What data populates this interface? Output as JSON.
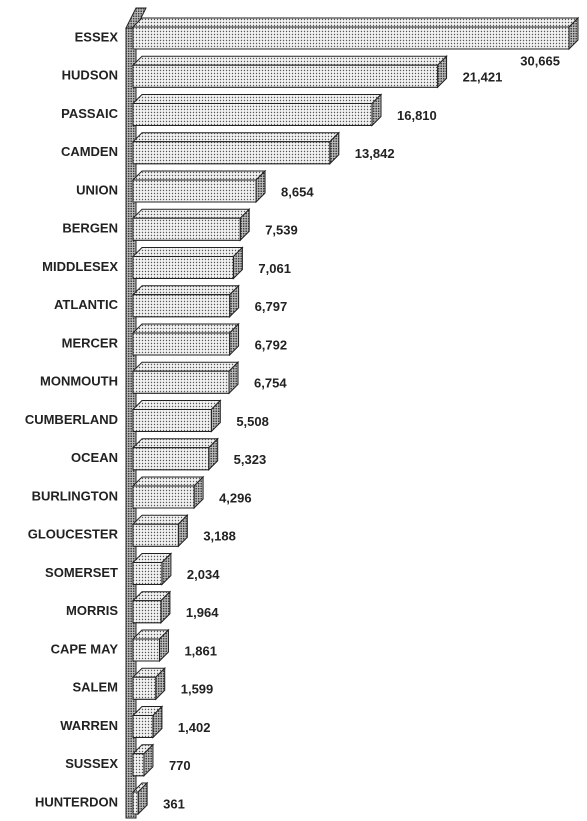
{
  "chart_data": {
    "type": "bar",
    "orientation": "horizontal",
    "categories": [
      "ESSEX",
      "HUDSON",
      "PASSAIC",
      "CAMDEN",
      "UNION",
      "BERGEN",
      "MIDDLESEX",
      "ATLANTIC",
      "MERCER",
      "MONMOUTH",
      "CUMBERLAND",
      "OCEAN",
      "BURLINGTON",
      "GLOUCESTER",
      "SOMERSET",
      "MORRIS",
      "CAPE MAY",
      "SALEM",
      "WARREN",
      "SUSSEX",
      "HUNTERDON"
    ],
    "values": [
      30665,
      21421,
      16810,
      13842,
      8654,
      7539,
      7061,
      6797,
      6792,
      6754,
      5508,
      5323,
      4296,
      3188,
      2034,
      1964,
      1861,
      1599,
      1402,
      770,
      361
    ],
    "value_labels": [
      "30,665",
      "21,421",
      "16,810",
      "13,842",
      "8,654",
      "7,539",
      "7,061",
      "6,797",
      "6,792",
      "6,754",
      "5,508",
      "5,323",
      "4,296",
      "3,188",
      "2,034",
      "1,964",
      "1,861",
      "1,599",
      "1,402",
      "770",
      "361"
    ],
    "color": "#dcdcdc"
  }
}
